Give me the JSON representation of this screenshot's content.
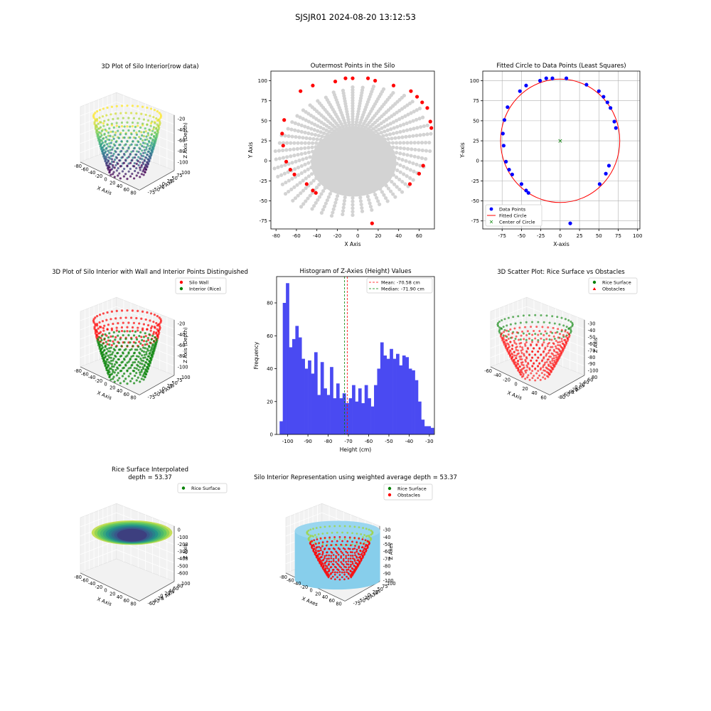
{
  "figure": {
    "suptitle": "SJSJR01 2024-08-20 13:12:53"
  },
  "colors": {
    "red": "#ff0000",
    "green": "#008000",
    "blue": "#0000ff",
    "gray": "#d3d3d3",
    "hist": "#4a4af2",
    "sky": "#87ceeb",
    "axisbg": "#f2f2f2"
  },
  "chart_data": [
    {
      "id": "p1",
      "type": "scatter",
      "projection": "3d",
      "title": "3D Plot of Silo Interior(row data)",
      "xlabel": "X Axis",
      "ylabel": "Y Axis",
      "zlabel": "Z Axis (Depth)",
      "xticks": [
        "-80",
        "-60",
        "-40",
        "-20",
        "0",
        "20",
        "40",
        "60",
        "80"
      ],
      "yticks": [
        "-75",
        "-50",
        "-25",
        "0",
        "25",
        "50",
        "75",
        "100"
      ],
      "zticks": [
        "-20",
        "-40",
        "-60",
        "-80",
        "-100"
      ],
      "colormap": "viridis",
      "zlim": [
        -110,
        -15
      ]
    },
    {
      "id": "p2",
      "type": "scatter",
      "title": "Outermost Points in the Silo",
      "xlabel": "X Axis",
      "ylabel": "Y Axis",
      "xlim": [
        -85,
        75
      ],
      "ylim": [
        -85,
        112
      ],
      "xticks": [
        -80,
        -60,
        -40,
        -20,
        0,
        20,
        40,
        60
      ],
      "yticks": [
        -75,
        -50,
        -25,
        0,
        25,
        50,
        75,
        100
      ],
      "grid": false,
      "outer_points": [
        [
          -72,
          51
        ],
        [
          -74,
          34
        ],
        [
          -73,
          19
        ],
        [
          -70,
          -1
        ],
        [
          -66,
          -11
        ],
        [
          -62,
          -17
        ],
        [
          -50,
          -29
        ],
        [
          -44,
          -37
        ],
        [
          -41,
          -40
        ],
        [
          -56,
          87
        ],
        [
          -44,
          94
        ],
        [
          -22,
          99
        ],
        [
          -12,
          103
        ],
        [
          -5,
          103
        ],
        [
          10,
          103
        ],
        [
          17,
          100
        ],
        [
          35,
          94
        ],
        [
          52,
          87
        ],
        [
          58,
          80
        ],
        [
          63,
          73
        ],
        [
          68,
          66
        ],
        [
          71,
          49
        ],
        [
          72,
          41
        ],
        [
          64,
          -6
        ],
        [
          60,
          -16
        ],
        [
          51,
          -29
        ],
        [
          14,
          -78
        ]
      ]
    },
    {
      "id": "p3",
      "type": "scatter",
      "title": "Fitted Circle to Data Points (Least Squares)",
      "xlabel": "X-axis",
      "ylabel": "Y-axis",
      "xlim": [
        -100,
        103
      ],
      "ylim": [
        -85,
        112
      ],
      "xticks": [
        -75,
        -50,
        -25,
        0,
        25,
        50,
        75,
        100
      ],
      "yticks": [
        -75,
        -50,
        -25,
        0,
        25,
        50,
        75,
        100
      ],
      "grid": true,
      "legend": "lower left",
      "data_points": [
        [
          -72,
          51
        ],
        [
          -74,
          34
        ],
        [
          -73,
          19
        ],
        [
          -70,
          -1
        ],
        [
          -66,
          -11
        ],
        [
          -62,
          -17
        ],
        [
          -50,
          -29
        ],
        [
          -44,
          -37
        ],
        [
          -41,
          -40
        ],
        [
          -68,
          67
        ],
        [
          -52,
          87
        ],
        [
          -44,
          94
        ],
        [
          -26,
          100
        ],
        [
          -18,
          103
        ],
        [
          -10,
          103
        ],
        [
          8,
          103
        ],
        [
          34,
          95
        ],
        [
          50,
          87
        ],
        [
          56,
          80
        ],
        [
          61,
          73
        ],
        [
          65,
          66
        ],
        [
          70,
          49
        ],
        [
          72,
          41
        ],
        [
          63,
          -6
        ],
        [
          59,
          -16
        ],
        [
          51,
          -29
        ],
        [
          13,
          -78
        ]
      ],
      "circle_center": [
        0,
        25
      ],
      "circle_radius": 77,
      "legend_entries": [
        "Data Points",
        "Fitted Circle",
        "Center of Circle"
      ]
    },
    {
      "id": "p4",
      "type": "scatter",
      "projection": "3d",
      "title": "3D Plot of Silo Interior with Wall and Interior Points Distinguished",
      "xlabel": "X Axis",
      "ylabel": "Y Axis",
      "zlabel": "Z Axis (Depth)",
      "xticks": [
        "-80",
        "-60",
        "-40",
        "-20",
        "0",
        "20",
        "40",
        "60",
        "80"
      ],
      "yticks": [
        "-75",
        "-50",
        "-25",
        "0",
        "25",
        "50",
        "75",
        "100"
      ],
      "zticks": [
        "-20",
        "-40",
        "-60",
        "-80",
        "-100"
      ],
      "legend": "upper right",
      "legend_entries": [
        "Silo Wall",
        "Interior (Rice)"
      ]
    },
    {
      "id": "p5",
      "type": "bar",
      "title": "Histogram of Z-Axies (Height) Values",
      "xlabel": "Height (cm)",
      "ylabel": "Frequency",
      "xlim": [
        -105.5,
        -27.5
      ],
      "ylim": [
        0,
        96
      ],
      "xticks": [
        -100,
        -90,
        -80,
        -70,
        -60,
        -50,
        -40,
        -30
      ],
      "yticks": [
        0,
        20,
        40,
        60,
        80
      ],
      "bin_start": -104,
      "bin_width": 1.555,
      "values": [
        8,
        80,
        92,
        53,
        58,
        66,
        59,
        46,
        40,
        45,
        37,
        50,
        24,
        44,
        28,
        24,
        41,
        22,
        31,
        22,
        25,
        19,
        22,
        30,
        20,
        28,
        19,
        30,
        22,
        17,
        30,
        40,
        56,
        48,
        46,
        52,
        46,
        49,
        42,
        48,
        47,
        40,
        39,
        33,
        20,
        9,
        5,
        5,
        4
      ],
      "mean": -70.58,
      "median": -71.9,
      "legend_entries": [
        "Mean: -70.58 cm",
        "Median: -71.90 cm"
      ]
    },
    {
      "id": "p6",
      "type": "scatter",
      "projection": "3d",
      "title": "3D Scatter Plot: Rice Surface vs Obstacles",
      "xlabel": "X Axis",
      "ylabel": "Y Axis",
      "zlabel": "Z Axis",
      "xticks": [
        "-60",
        "-40",
        "-20",
        "0",
        "20",
        "40",
        "60"
      ],
      "yticks": [
        "-80",
        "-60",
        "-40",
        "-20",
        "0",
        "20",
        "40",
        "60",
        "80"
      ],
      "zticks": [
        "-30",
        "-40",
        "-50",
        "-60",
        "-70",
        "-80",
        "-90",
        "-100"
      ],
      "legend_entries": [
        "Rice Surface",
        "Obstacles"
      ]
    },
    {
      "id": "p7",
      "type": "area",
      "projection": "3d",
      "title": "Rice Surface Interpolated",
      "subtitle": "depth = 53.37",
      "xlabel": "X Axis",
      "ylabel": "Y Axis",
      "zlabel": "Z Axis",
      "xticks": [
        "-80",
        "-60",
        "-40",
        "-20",
        "0",
        "20",
        "40",
        "60",
        "80"
      ],
      "yticks": [
        "-60",
        "-40",
        "-20",
        "0",
        "20",
        "40",
        "60",
        "80",
        "100"
      ],
      "zticks": [
        "0",
        "-100",
        "-200",
        "-300",
        "-400",
        "-500",
        "-600"
      ],
      "legend_entries": [
        "Rice Surface"
      ]
    },
    {
      "id": "p8",
      "type": "area",
      "projection": "3d",
      "title": "Silo Interior Representation using weighted average depth = 53.37",
      "xlabel": "X Axes",
      "ylabel": "Y Axes",
      "zlabel": "Z Axes",
      "xticks": [
        "-80",
        "-60",
        "-40",
        "-20",
        "0",
        "20",
        "40",
        "60",
        "80"
      ],
      "yticks": [
        "-75",
        "-50",
        "-25",
        "0",
        "25",
        "50",
        "75",
        "100"
      ],
      "zticks": [
        "-30",
        "-40",
        "-50",
        "-60",
        "-70",
        "-80",
        "-90",
        "-100"
      ],
      "legend_entries": [
        "Rice Surface",
        "Obstacles"
      ]
    }
  ]
}
